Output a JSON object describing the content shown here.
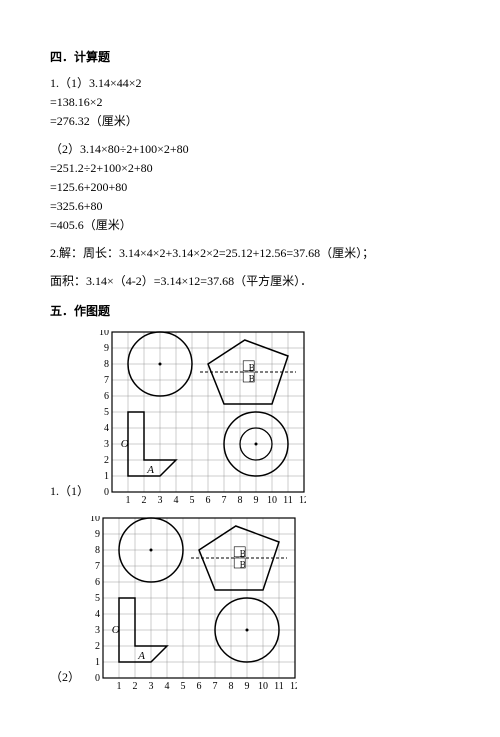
{
  "section4": {
    "title": "四．计算题",
    "p1_lines": [
      "1.（1）3.14×44×2",
      "=138.16×2",
      "=276.32（厘米）"
    ],
    "p2_lines": [
      "（2）3.14×80÷2+100×2+80",
      "=251.2÷2+100×2+80",
      "=125.6+200+80",
      "=325.6+80",
      "=405.6（厘米）"
    ],
    "p3": "2.解：周长：3.14×4×2+3.14×2×2=25.12+12.56=37.68（厘米）；",
    "p4": "面积：3.14×（4-2）=3.14×12=37.68（平方厘米）．"
  },
  "section5": {
    "title": "五．作图题",
    "fig1_label": "1.（1）",
    "fig2_label": "（2）",
    "grid": {
      "cols": 12,
      "rows": 10,
      "cell": 16,
      "stroke": "#999",
      "outer": "#000",
      "axis_font": 10,
      "xlabels": [
        "1",
        "2",
        "3",
        "4",
        "5",
        "6",
        "7",
        "8",
        "9",
        "10",
        "11",
        "12"
      ],
      "ylabels": [
        "0",
        "1",
        "2",
        "3",
        "4",
        "5",
        "6",
        "7",
        "8",
        "9",
        "10"
      ]
    },
    "letters": {
      "A": "A",
      "B": "B",
      "O": "O"
    },
    "colors": {
      "bg": "#ffffff",
      "shape": "#000000"
    }
  }
}
